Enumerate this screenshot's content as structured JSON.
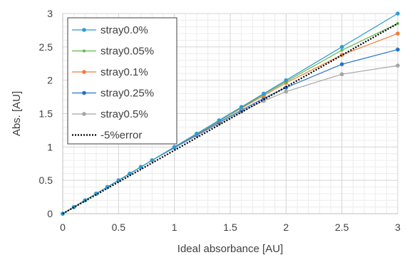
{
  "chart_data": {
    "type": "line",
    "title": "",
    "xlabel": "Ideal absorbance [AU]",
    "ylabel": "Abs. [AU]",
    "xlim": [
      0,
      3
    ],
    "ylim": [
      0,
      3
    ],
    "x_ticks": [
      "0",
      "0.5",
      "1",
      "1.5",
      "2",
      "2.5",
      "3"
    ],
    "y_ticks": [
      "0",
      "0.5",
      "1",
      "1.5",
      "2",
      "2.5",
      "3"
    ],
    "grid": true,
    "legend_placement": "top-left",
    "x": [
      0,
      0.1,
      0.2,
      0.3,
      0.4,
      0.5,
      0.6,
      0.7,
      0.8,
      1.0,
      1.2,
      1.4,
      1.6,
      1.8,
      2.0,
      2.5,
      3.0
    ],
    "series": [
      {
        "name": "stray0.0%",
        "color": "#2e9bd6",
        "marker": "circle",
        "values": [
          0,
          0.1,
          0.2,
          0.3,
          0.4,
          0.5,
          0.6,
          0.7,
          0.8,
          1.0,
          1.2,
          1.4,
          1.6,
          1.8,
          2.0,
          2.5,
          3.0
        ]
      },
      {
        "name": "stray0.05%",
        "color": "#5fb84a",
        "marker": "circle-small",
        "values": [
          0,
          0.1,
          0.2,
          0.3,
          0.4,
          0.5,
          0.6,
          0.7,
          0.8,
          1.0,
          1.2,
          1.39,
          1.59,
          1.79,
          1.98,
          2.45,
          2.85
        ]
      },
      {
        "name": "stray0.1%",
        "color": "#f07c3a",
        "marker": "circle",
        "values": [
          0,
          0.1,
          0.2,
          0.3,
          0.4,
          0.5,
          0.6,
          0.7,
          0.8,
          1.0,
          1.19,
          1.39,
          1.58,
          1.77,
          1.96,
          2.38,
          2.7
        ]
      },
      {
        "name": "stray0.25%",
        "color": "#2472c8",
        "marker": "circle",
        "values": [
          0,
          0.1,
          0.2,
          0.3,
          0.4,
          0.5,
          0.6,
          0.7,
          0.8,
          0.99,
          1.18,
          1.37,
          1.55,
          1.73,
          1.89,
          2.24,
          2.46
        ]
      },
      {
        "name": "stray0.5%",
        "color": "#a5a5a5",
        "marker": "circle",
        "values": [
          0,
          0.1,
          0.2,
          0.3,
          0.4,
          0.5,
          0.6,
          0.7,
          0.8,
          0.99,
          1.17,
          1.35,
          1.53,
          1.69,
          1.83,
          2.09,
          2.22
        ]
      },
      {
        "name": "-5%error",
        "color": "#000000",
        "marker": "none",
        "dash": "dotted",
        "values": [
          0,
          0.095,
          0.19,
          0.285,
          0.38,
          0.475,
          0.57,
          0.665,
          0.76,
          0.95,
          1.14,
          1.33,
          1.52,
          1.71,
          1.9,
          2.375,
          2.85
        ]
      }
    ]
  }
}
